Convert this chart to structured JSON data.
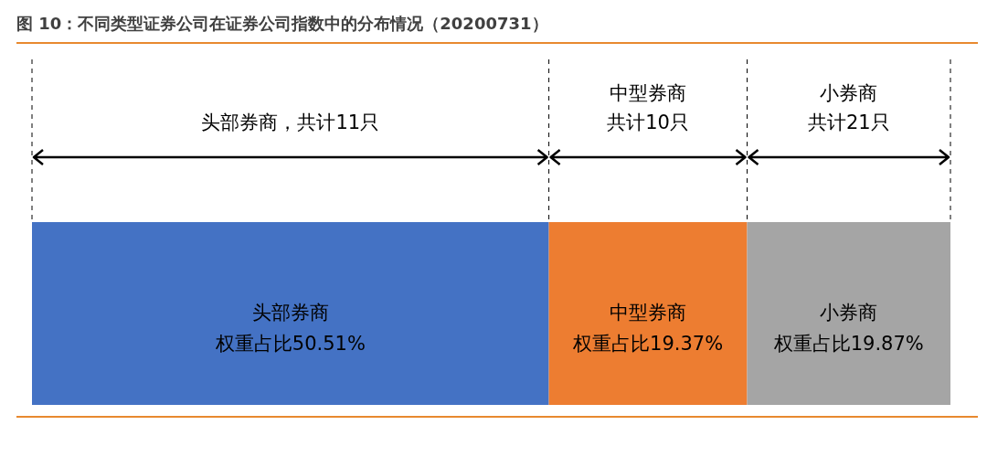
{
  "chart_data": {
    "type": "bar",
    "orientation": "horizontal",
    "stacked": true,
    "title": "图 10：不同类型证券公司在证券公司指数中的分布情况（20200731）",
    "categories": [
      null
    ],
    "series": [
      {
        "name": "头部券商",
        "color": "#4472c4",
        "values": [
          50.51
        ],
        "value_labels": [
          "权重占比50.51%"
        ]
      },
      {
        "name": "中型券商",
        "color": "#ed7d31",
        "values": [
          19.37
        ],
        "value_labels": [
          "权重占比19.37%"
        ]
      },
      {
        "name": "小券商",
        "color": "#a5a5a5",
        "values": [
          19.87
        ],
        "value_labels": [
          "权重占比19.87%"
        ]
      }
    ],
    "annotations": [
      "头部券商，共计11只",
      "中型券商",
      "共计10只",
      "小券商",
      "共计21只"
    ]
  }
}
